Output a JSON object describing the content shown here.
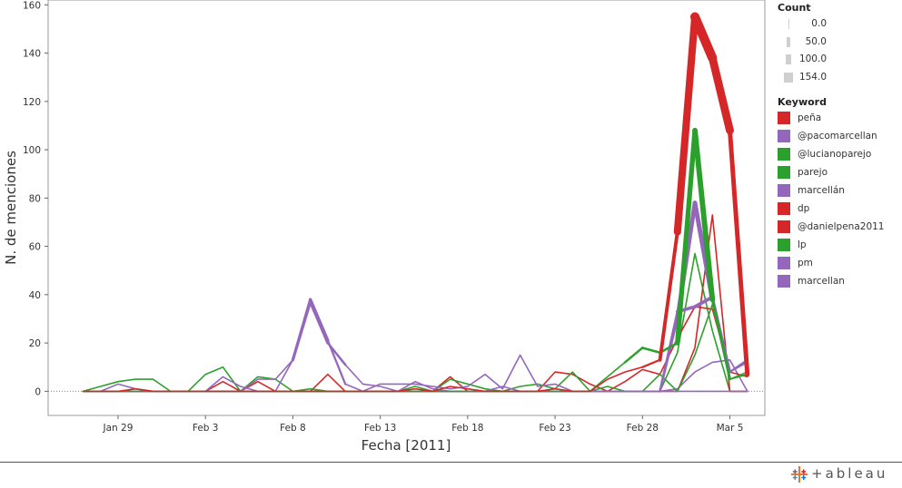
{
  "chart_data": {
    "type": "line",
    "xlabel": "Fecha [2011]",
    "ylabel": "N. de menciones",
    "ylim": [
      -10,
      162
    ],
    "yticks": [
      0,
      20,
      40,
      60,
      80,
      100,
      120,
      140,
      160
    ],
    "x_range": [
      "2011-01-25",
      "2011-03-07"
    ],
    "x_ticks": [
      {
        "date": "2011-01-29",
        "label": "Jan 29"
      },
      {
        "date": "2011-02-03",
        "label": "Feb 3"
      },
      {
        "date": "2011-02-08",
        "label": "Feb 8"
      },
      {
        "date": "2011-02-13",
        "label": "Feb 13"
      },
      {
        "date": "2011-02-18",
        "label": "Feb 18"
      },
      {
        "date": "2011-02-23",
        "label": "Feb 23"
      },
      {
        "date": "2011-02-28",
        "label": "Feb 28"
      },
      {
        "date": "2011-03-05",
        "label": "Mar 5"
      }
    ],
    "x": [
      "2011-01-27",
      "2011-01-28",
      "2011-01-29",
      "2011-01-30",
      "2011-01-31",
      "2011-02-01",
      "2011-02-02",
      "2011-02-03",
      "2011-02-04",
      "2011-02-05",
      "2011-02-06",
      "2011-02-07",
      "2011-02-08",
      "2011-02-09",
      "2011-02-10",
      "2011-02-11",
      "2011-02-12",
      "2011-02-13",
      "2011-02-14",
      "2011-02-15",
      "2011-02-16",
      "2011-02-17",
      "2011-02-18",
      "2011-02-19",
      "2011-02-20",
      "2011-02-21",
      "2011-02-22",
      "2011-02-23",
      "2011-02-24",
      "2011-02-25",
      "2011-02-26",
      "2011-02-27",
      "2011-02-28",
      "2011-03-01",
      "2011-03-02",
      "2011-03-03",
      "2011-03-04",
      "2011-03-05",
      "2011-03-06"
    ],
    "series": [
      {
        "name": "peña",
        "color": "#d62728",
        "values": [
          0,
          0,
          0,
          1,
          0,
          0,
          0,
          0,
          0,
          0,
          0,
          0,
          0,
          0,
          0,
          0,
          0,
          0,
          0,
          1,
          0,
          2,
          1,
          0,
          0,
          0,
          0,
          1,
          0,
          0,
          5,
          8,
          10,
          13,
          66,
          155,
          138,
          108,
          7
        ]
      },
      {
        "name": "@pacomarcellan",
        "color": "#9467bd",
        "values": [
          0,
          0,
          0,
          0,
          0,
          0,
          0,
          0,
          0,
          0,
          0,
          0,
          0,
          0,
          0,
          0,
          0,
          0,
          0,
          0,
          0,
          0,
          0,
          0,
          0,
          0,
          0,
          0,
          0,
          0,
          0,
          0,
          0,
          0,
          1,
          8,
          12,
          13,
          0
        ]
      },
      {
        "name": "@lucianoparejo",
        "color": "#2ca02c",
        "values": [
          0,
          0,
          0,
          0,
          0,
          0,
          0,
          0,
          0,
          0,
          0,
          0,
          0,
          0,
          0,
          0,
          0,
          0,
          0,
          0,
          0,
          0,
          0,
          0,
          0,
          0,
          0,
          0,
          0,
          0,
          0,
          0,
          0,
          0,
          16,
          57,
          25,
          0,
          0
        ]
      },
      {
        "name": "parejo",
        "color": "#2ca02c",
        "values": [
          0,
          0,
          0,
          0,
          0,
          0,
          0,
          0,
          0,
          0,
          0,
          0,
          0,
          0,
          0,
          0,
          0,
          0,
          0,
          0,
          0,
          0,
          0,
          0,
          0,
          0,
          0,
          0,
          0,
          0,
          6,
          12,
          18,
          16,
          20,
          108,
          38,
          5,
          8
        ]
      },
      {
        "name": "marcellán",
        "color": "#9467bd",
        "values": [
          0,
          0,
          0,
          0,
          0,
          0,
          0,
          0,
          0,
          0,
          0,
          0,
          0,
          0,
          0,
          0,
          0,
          0,
          0,
          0,
          0,
          0,
          0,
          0,
          0,
          0,
          0,
          0,
          0,
          0,
          0,
          0,
          0,
          0,
          30,
          78,
          38,
          8,
          12
        ]
      },
      {
        "name": "dp",
        "color": "#d62728",
        "values": [
          0,
          0,
          0,
          0,
          0,
          0,
          0,
          0,
          0,
          0,
          0,
          0,
          0,
          0,
          0,
          0,
          0,
          0,
          0,
          0,
          0,
          0,
          0,
          0,
          0,
          0,
          0,
          0,
          0,
          0,
          0,
          0,
          0,
          0,
          0,
          18,
          73,
          0,
          0
        ]
      },
      {
        "name": "@danielpena2011",
        "color": "#d62728",
        "values": [
          0,
          0,
          0,
          0,
          0,
          0,
          0,
          0,
          4,
          0,
          4,
          0,
          0,
          0,
          7,
          0,
          0,
          0,
          0,
          0,
          0,
          6,
          0,
          0,
          0,
          0,
          0,
          8,
          7,
          3,
          0,
          4,
          9,
          7,
          22,
          35,
          34,
          8,
          6
        ]
      },
      {
        "name": "lp",
        "color": "#2ca02c",
        "values": [
          0,
          2,
          4,
          5,
          5,
          0,
          0,
          7,
          10,
          0,
          6,
          5,
          0,
          1,
          0,
          0,
          0,
          0,
          0,
          2,
          0,
          5,
          3,
          1,
          0,
          2,
          3,
          1,
          8,
          0,
          2,
          0,
          0,
          7,
          0,
          15,
          36,
          5,
          7
        ]
      },
      {
        "name": "pm",
        "color": "#9467bd",
        "values": [
          0,
          0,
          3,
          1,
          0,
          0,
          0,
          0,
          6,
          2,
          0,
          0,
          13,
          38,
          21,
          3,
          0,
          3,
          3,
          3,
          2,
          1,
          2,
          7,
          1,
          15,
          2,
          3,
          0,
          0,
          0,
          0,
          0,
          0,
          33,
          35,
          39,
          8,
          13
        ]
      },
      {
        "name": "marcellan",
        "color": "#9467bd",
        "values": [
          0,
          0,
          0,
          0,
          0,
          0,
          0,
          0,
          0,
          0,
          5,
          5,
          13,
          37,
          20,
          11,
          3,
          2,
          0,
          4,
          1,
          0,
          0,
          0,
          2,
          0,
          0,
          0,
          0,
          0,
          0,
          0,
          0,
          0,
          0,
          0,
          0,
          0,
          0
        ]
      }
    ],
    "thick_series": [
      "peña",
      "parejo",
      "marcellán",
      "pm",
      "marcellan"
    ]
  },
  "legend": {
    "count_title": "Count",
    "count_items": [
      {
        "label": "0.0",
        "value": 0
      },
      {
        "label": "50.0",
        "value": 50
      },
      {
        "label": "100.0",
        "value": 100
      },
      {
        "label": "154.0",
        "value": 154
      }
    ],
    "keyword_title": "Keyword",
    "keyword_items": [
      {
        "label": "peña",
        "color": "#d62728"
      },
      {
        "label": "@pacomarcellan",
        "color": "#9467bd"
      },
      {
        "label": "@lucianoparejo",
        "color": "#2ca02c"
      },
      {
        "label": "parejo",
        "color": "#2ca02c"
      },
      {
        "label": "marcellán",
        "color": "#9467bd"
      },
      {
        "label": "dp",
        "color": "#d62728"
      },
      {
        "label": "@danielpena2011",
        "color": "#d62728"
      },
      {
        "label": "lp",
        "color": "#2ca02c"
      },
      {
        "label": "pm",
        "color": "#9467bd"
      },
      {
        "label": "marcellan",
        "color": "#9467bd"
      }
    ]
  },
  "brand": {
    "text": "+ableau"
  }
}
